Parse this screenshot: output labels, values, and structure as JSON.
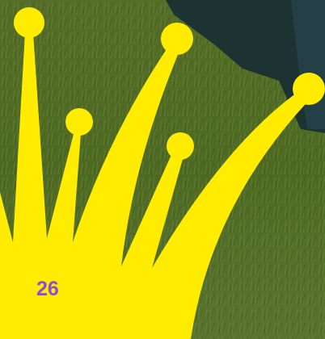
{
  "badge": {
    "number": "26"
  }
}
